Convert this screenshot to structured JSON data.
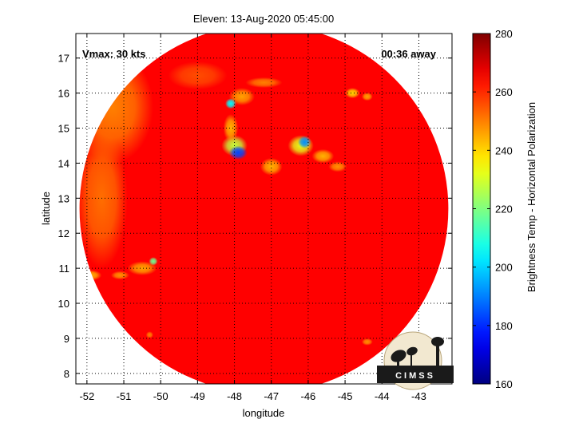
{
  "chart_data": {
    "type": "heatmap",
    "title": "Eleven: 13-Aug-2020 05:45:00",
    "xlabel": "longitude",
    "ylabel": "latitude",
    "xlim": [
      -52.3,
      -42.1
    ],
    "ylim": [
      7.7,
      17.7
    ],
    "x_ticks": [
      -52,
      -51,
      -50,
      -49,
      -48,
      -47,
      -46,
      -45,
      -44,
      -43
    ],
    "y_ticks": [
      8,
      9,
      10,
      11,
      12,
      13,
      14,
      15,
      16,
      17
    ],
    "grid": true,
    "grid_style": "dotted",
    "annotations": {
      "vmax": "Vmax: 30 kts",
      "time_away": "00:36 away"
    },
    "colorbar": {
      "label": "Brightness Temp - Horizontal Polarization",
      "range": [
        160,
        280
      ],
      "ticks": [
        160,
        180,
        200,
        220,
        240,
        260,
        280
      ],
      "colormap": "jet"
    },
    "swath": {
      "center_lon": -47.2,
      "center_lat": 12.7,
      "radius_deg": 5.0,
      "background_tb": 265
    },
    "features": [
      {
        "lon": -51.3,
        "lat": 15.6,
        "sx": 1.1,
        "sy": 1.6,
        "tb": 250
      },
      {
        "lon": -51.6,
        "lat": 13.0,
        "sx": 0.7,
        "sy": 2.0,
        "tb": 252
      },
      {
        "lon": -49.0,
        "lat": 16.5,
        "sx": 0.8,
        "sy": 0.4,
        "tb": 256
      },
      {
        "lon": -47.9,
        "lat": 14.3,
        "sx": 0.25,
        "sy": 0.2,
        "tb": 183
      },
      {
        "lon": -48.0,
        "lat": 14.5,
        "sx": 0.35,
        "sy": 0.3,
        "tb": 228
      },
      {
        "lon": -48.1,
        "lat": 15.0,
        "sx": 0.2,
        "sy": 0.4,
        "tb": 244
      },
      {
        "lon": -48.1,
        "lat": 15.7,
        "sx": 0.15,
        "sy": 0.15,
        "tb": 205
      },
      {
        "lon": -47.8,
        "lat": 15.9,
        "sx": 0.35,
        "sy": 0.25,
        "tb": 246
      },
      {
        "lon": -47.2,
        "lat": 16.3,
        "sx": 0.5,
        "sy": 0.15,
        "tb": 250
      },
      {
        "lon": -46.1,
        "lat": 14.6,
        "sx": 0.18,
        "sy": 0.18,
        "tb": 192
      },
      {
        "lon": -46.2,
        "lat": 14.5,
        "sx": 0.35,
        "sy": 0.3,
        "tb": 232
      },
      {
        "lon": -45.6,
        "lat": 14.2,
        "sx": 0.3,
        "sy": 0.2,
        "tb": 244
      },
      {
        "lon": -45.2,
        "lat": 13.9,
        "sx": 0.25,
        "sy": 0.15,
        "tb": 248
      },
      {
        "lon": -47.0,
        "lat": 13.9,
        "sx": 0.3,
        "sy": 0.25,
        "tb": 244
      },
      {
        "lon": -44.8,
        "lat": 16.0,
        "sx": 0.2,
        "sy": 0.15,
        "tb": 240
      },
      {
        "lon": -44.4,
        "lat": 15.9,
        "sx": 0.15,
        "sy": 0.12,
        "tb": 246
      },
      {
        "lon": -50.2,
        "lat": 11.2,
        "sx": 0.12,
        "sy": 0.12,
        "tb": 218
      },
      {
        "lon": -50.5,
        "lat": 11.0,
        "sx": 0.4,
        "sy": 0.2,
        "tb": 246
      },
      {
        "lon": -51.9,
        "lat": 10.8,
        "sx": 0.3,
        "sy": 0.15,
        "tb": 244
      },
      {
        "lon": -51.1,
        "lat": 10.8,
        "sx": 0.25,
        "sy": 0.12,
        "tb": 248
      },
      {
        "lon": -44.4,
        "lat": 8.9,
        "sx": 0.15,
        "sy": 0.1,
        "tb": 248
      },
      {
        "lon": -50.3,
        "lat": 9.1,
        "sx": 0.1,
        "sy": 0.1,
        "tb": 250
      }
    ],
    "logo_text": "CIMSS"
  }
}
